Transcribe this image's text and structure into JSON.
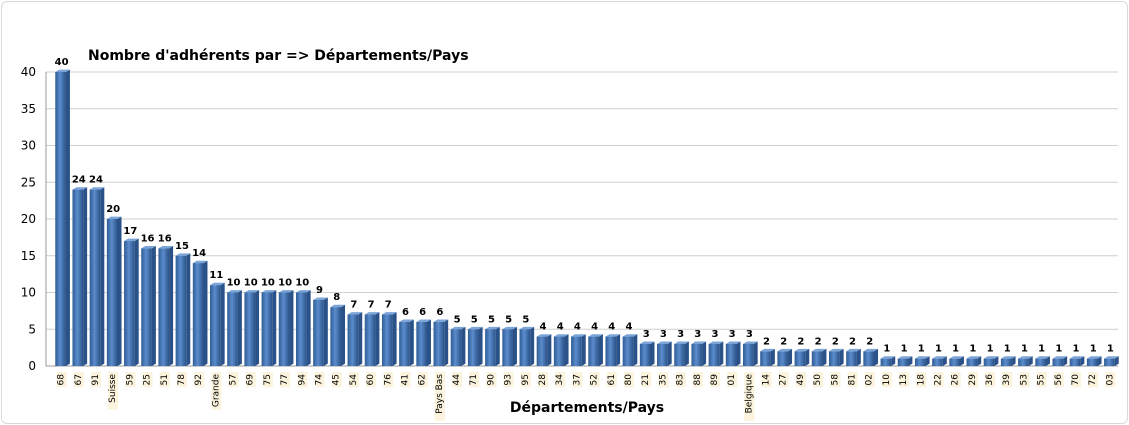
{
  "chart_data": {
    "type": "bar",
    "title": "Nombre d'adhérents par => Départements/Pays",
    "xlabel": "Départements/Pays",
    "ylabel": "",
    "ylim": [
      0,
      40
    ],
    "yticks": [
      0,
      5,
      10,
      15,
      20,
      25,
      30,
      35,
      40
    ],
    "grid": true,
    "colors": {
      "bar": "#4a7ab5",
      "bar_dark": "#2a5288",
      "grid": "#cfcfcf",
      "tick_label_bg": "#fbf3dc"
    },
    "categories": [
      "68",
      "67",
      "91",
      "Suisse",
      "59",
      "25",
      "51",
      "78",
      "92",
      "Grande",
      "57",
      "69",
      "75",
      "77",
      "94",
      "74",
      "45",
      "54",
      "60",
      "76",
      "41",
      "62",
      "Pays Bas",
      "44",
      "71",
      "90",
      "93",
      "95",
      "28",
      "34",
      "37",
      "52",
      "61",
      "80",
      "21",
      "35",
      "83",
      "88",
      "89",
      "01",
      "Belgique",
      "14",
      "27",
      "49",
      "50",
      "58",
      "81",
      "02",
      "10",
      "13",
      "18",
      "22",
      "26",
      "29",
      "36",
      "39",
      "53",
      "55",
      "56",
      "70",
      "72",
      "03"
    ],
    "values": [
      40,
      24,
      24,
      20,
      17,
      16,
      16,
      15,
      14,
      11,
      10,
      10,
      10,
      10,
      10,
      9,
      8,
      7,
      7,
      7,
      6,
      6,
      6,
      5,
      5,
      5,
      5,
      5,
      4,
      4,
      4,
      4,
      4,
      4,
      3,
      3,
      3,
      3,
      3,
      3,
      3,
      2,
      2,
      2,
      2,
      2,
      2,
      2,
      1,
      1,
      1,
      1,
      1,
      1,
      1,
      1,
      1,
      1,
      1,
      1,
      1,
      1
    ]
  }
}
